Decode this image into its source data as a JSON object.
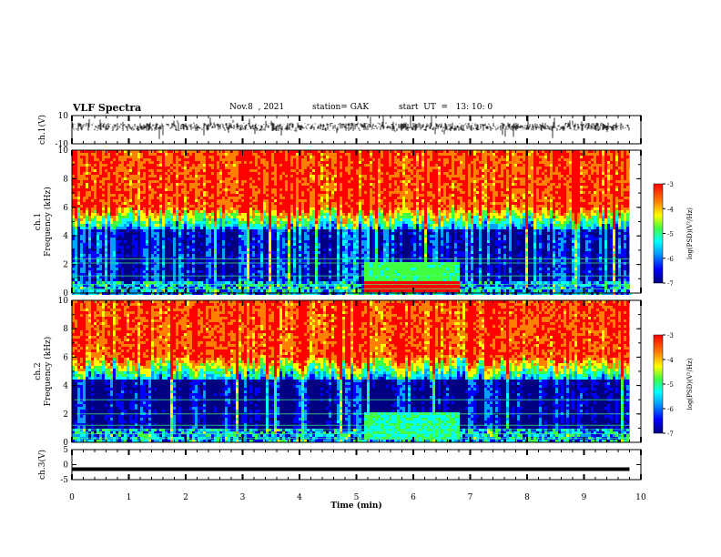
{
  "header": {
    "title": "VLF Spectra",
    "date": "Nov.8  , 2021",
    "station": "station= GAK",
    "start": "start  UT  =   13: 10: 0"
  },
  "chart_data": [
    {
      "type": "line",
      "panel": "ch1-waveform",
      "ylabel": "ch.1(V)",
      "ylim": [
        -10,
        10
      ],
      "yticks": [
        "10",
        "-10"
      ],
      "note": "noisy waveform signal, approx. amplitude 2-5 V around +2 V offset"
    },
    {
      "type": "heatmap",
      "panel": "ch1-spectrogram",
      "ylabel": "ch.1\nFrequency  (kHz)",
      "ylim": [
        0,
        10
      ],
      "yticks": [
        "0",
        "2",
        "4",
        "6",
        "8",
        "10"
      ],
      "bands_khz": [
        {
          "from": 0,
          "to": 1,
          "level": "mixed, narrow-band lines near 0.3, 0.6 kHz; strong enhancement 5.1-6.8 min"
        },
        {
          "from": 1,
          "to": 4.6,
          "level": "low (~ -6.5)"
        },
        {
          "from": 4.6,
          "to": 6,
          "level": "rising (~ -5 to -4)"
        },
        {
          "from": 6,
          "to": 10,
          "level": "high (~ -3.5)"
        }
      ],
      "colorbar": {
        "label": "log(PSD)(V²/Hz)",
        "ticks": [
          "-3",
          "-4",
          "-5",
          "-6",
          "-7"
        ],
        "range": [
          -7,
          -3
        ]
      }
    },
    {
      "type": "heatmap",
      "panel": "ch2-spectrogram",
      "ylabel": "ch.2\nFrequency  (kHz)",
      "ylim": [
        0,
        10
      ],
      "yticks": [
        "0",
        "2",
        "4",
        "6",
        "8",
        "10"
      ],
      "bands_khz": [
        {
          "from": 0,
          "to": 1,
          "level": "mixed, narrow-band lines"
        },
        {
          "from": 1,
          "to": 4.5,
          "level": "low (~ -6.5), lines at 1.2, 2.0, 3.0 kHz"
        },
        {
          "from": 4.5,
          "to": 6,
          "level": "rising (~ -5 to -4)"
        },
        {
          "from": 6,
          "to": 10,
          "level": "high (~ -3.7)"
        }
      ],
      "colorbar": {
        "label": "log(PSD)(V²/Hz)",
        "ticks": [
          "-3",
          "-4",
          "-5",
          "-6",
          "-7"
        ],
        "range": [
          -7,
          -3
        ]
      }
    },
    {
      "type": "line",
      "panel": "ch3-waveform",
      "ylabel": "ch.3(V)",
      "ylim": [
        -5,
        5
      ],
      "yticks": [
        "5",
        "0",
        "-5"
      ],
      "series": [
        {
          "x": [
            0,
            9.8
          ],
          "y": [
            -1.5,
            -1.5
          ]
        }
      ]
    }
  ],
  "xaxis": {
    "label": "Time  (min)",
    "range": [
      0,
      10
    ],
    "ticks": [
      "0",
      "1",
      "2",
      "3",
      "4",
      "5",
      "6",
      "7",
      "8",
      "9",
      "10"
    ],
    "data_end": 9.8
  },
  "colors": {
    "scale": [
      "#000080",
      "#0000ff",
      "#00a0ff",
      "#00ffff",
      "#40ff40",
      "#ffff00",
      "#ff8000",
      "#ff0000"
    ],
    "background": "#ffffff"
  }
}
